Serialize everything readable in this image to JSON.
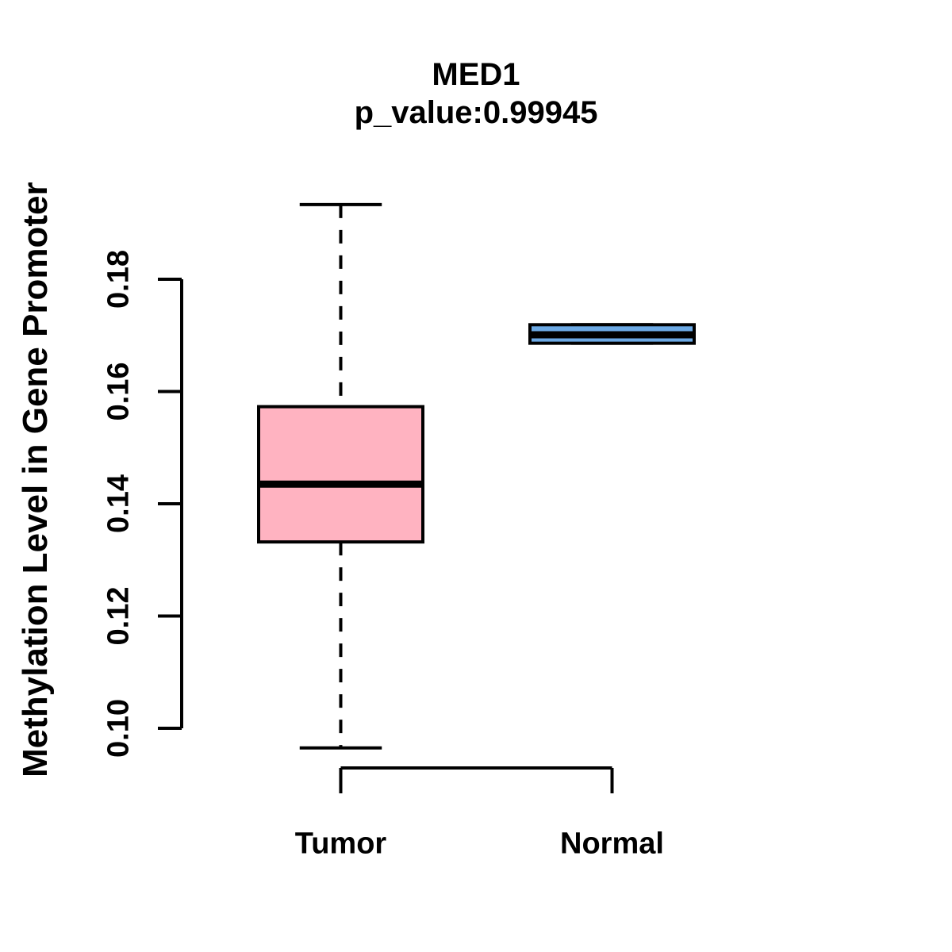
{
  "title": "MED1",
  "subtitle": "p_value:0.99945",
  "chart_data": {
    "type": "boxplot",
    "title": "MED1",
    "subtitle": "p_value:0.99945",
    "xlabel": "",
    "ylabel": "Methylation Level in Gene Promoter",
    "axis_range": [
      0.1,
      0.18
    ],
    "yticks": [
      0.1,
      0.12,
      0.14,
      0.16,
      0.18
    ],
    "ytick_labels": [
      "0.10",
      "0.12",
      "0.14",
      "0.16",
      "0.18"
    ],
    "categories": [
      "Tumor",
      "Normal"
    ],
    "grid": "off",
    "legend": "none",
    "series": [
      {
        "name": "Tumor",
        "color": "#FFB3C1",
        "whisker_low": 0.0965,
        "q1": 0.1332,
        "median": 0.1435,
        "q3": 0.1573,
        "whisker_high": 0.1933
      },
      {
        "name": "Normal",
        "color": "#6CA9E4",
        "whisker_low": 0.1686,
        "q1": 0.1686,
        "median": 0.1701,
        "q3": 0.1719,
        "whisker_high": 0.1719
      }
    ],
    "colors": {
      "tumor_fill": "#FFB3C1",
      "normal_fill": "#6CA9E4",
      "line": "#000000",
      "background": "#ffffff"
    }
  }
}
